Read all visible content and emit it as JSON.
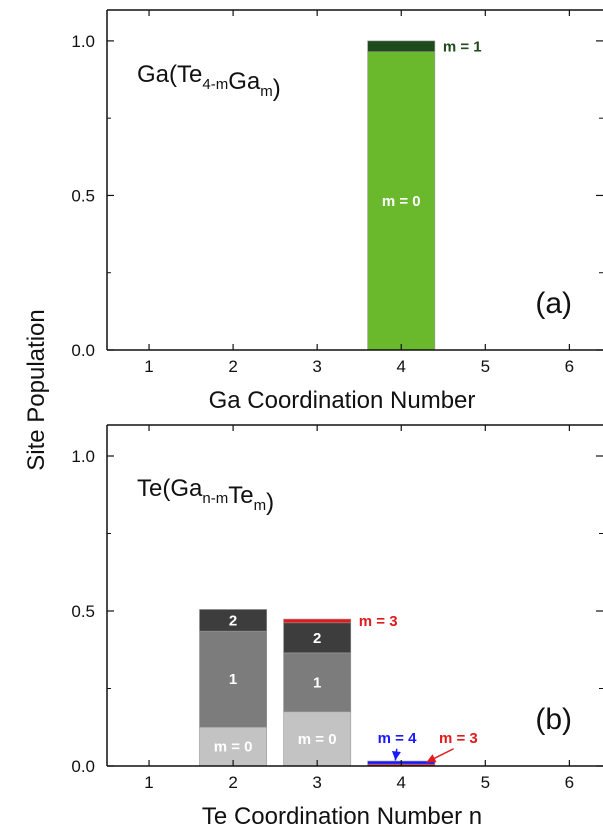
{
  "ylabel": "Site Population",
  "colors": {
    "green_main": "#6ab82c",
    "green_dark": "#1f4a1c",
    "m0_gray": "#c3c3c3",
    "m1_gray": "#7c7c7c",
    "m2_gray": "#3d3d3d",
    "red": "#e31a1c",
    "blue": "#1a1aff",
    "purple": "#8a1b5c"
  },
  "chart_data": [
    {
      "type": "bar",
      "stacked": true,
      "panel": "(a)",
      "title_parts": [
        {
          "text": "Ga(Te",
          "sub": false
        },
        {
          "text": "4-m",
          "sub": true
        },
        {
          "text": "Ga",
          "sub": false
        },
        {
          "text": "m",
          "sub": true
        },
        {
          "text": ")",
          "sub": false
        }
      ],
      "xlabel": "Ga Coordination Number",
      "ylabel": "Site Population",
      "x_ticks": [
        "1",
        "2",
        "3",
        "4",
        "5",
        "6"
      ],
      "y_ticks": [
        "0.0",
        "0.5",
        "1.0"
      ],
      "xlim": [
        0.5,
        6.4
      ],
      "ylim": [
        0,
        1.1
      ],
      "bars": [
        {
          "x": 4,
          "segments": [
            {
              "name": "m = 0",
              "value": 0.965,
              "color": "#6ab82c",
              "label": "m = 0",
              "label_color": "#ffffff"
            },
            {
              "name": "m = 1",
              "value": 0.035,
              "color": "#1f4a1c",
              "label": "m = 1",
              "label_color": "#1f4a1c",
              "label_side": true
            }
          ]
        }
      ],
      "annotations": []
    },
    {
      "type": "bar",
      "stacked": true,
      "panel": "(b)",
      "title_parts": [
        {
          "text": "Te(Ga",
          "sub": false
        },
        {
          "text": "n-m",
          "sub": true
        },
        {
          "text": "Te",
          "sub": false
        },
        {
          "text": "m",
          "sub": true
        },
        {
          "text": ")",
          "sub": false
        }
      ],
      "xlabel": "Te Coordination Number n",
      "ylabel": "Site Population",
      "x_ticks": [
        "1",
        "2",
        "3",
        "4",
        "5",
        "6"
      ],
      "y_ticks": [
        "0.0",
        "0.5",
        "1.0"
      ],
      "xlim": [
        0.5,
        6.4
      ],
      "ylim": [
        0,
        1.1
      ],
      "bars": [
        {
          "x": 2,
          "segments": [
            {
              "name": "m = 0",
              "value": 0.125,
              "color": "#c3c3c3",
              "label": "m = 0",
              "label_color": "#ffffff"
            },
            {
              "name": "1",
              "value": 0.31,
              "color": "#7c7c7c",
              "label": "1",
              "label_color": "#ffffff"
            },
            {
              "name": "2",
              "value": 0.07,
              "color": "#3d3d3d",
              "label": "2",
              "label_color": "#ffffff"
            }
          ]
        },
        {
          "x": 3,
          "segments": [
            {
              "name": "m = 0",
              "value": 0.175,
              "color": "#c3c3c3",
              "label": "m = 0",
              "label_color": "#ffffff"
            },
            {
              "name": "1",
              "value": 0.19,
              "color": "#7c7c7c",
              "label": "1",
              "label_color": "#ffffff"
            },
            {
              "name": "2",
              "value": 0.097,
              "color": "#3d3d3d",
              "label": "2",
              "label_color": "#ffffff"
            },
            {
              "name": "m = 3",
              "value": 0.012,
              "color": "#e31a1c",
              "label": "m = 3",
              "label_color": "#e31a1c",
              "label_side": true
            }
          ]
        },
        {
          "x": 4,
          "segments": [
            {
              "name": "m = 3",
              "value": 0.006,
              "color": "#e31a1c",
              "label": ""
            },
            {
              "name": "m = 4",
              "value": 0.01,
              "color": "#1a1aff",
              "label": ""
            }
          ]
        }
      ],
      "annotations": [
        {
          "text": "m = 4",
          "color": "#1a1aff",
          "target_x": 3.93,
          "target_y": 0.018,
          "label_x": 3.95,
          "label_y": 0.075
        },
        {
          "text": "m = 3",
          "color": "#e31a1c",
          "target_x": 4.3,
          "target_y": 0.012,
          "label_x": 4.68,
          "label_y": 0.075
        }
      ]
    }
  ]
}
